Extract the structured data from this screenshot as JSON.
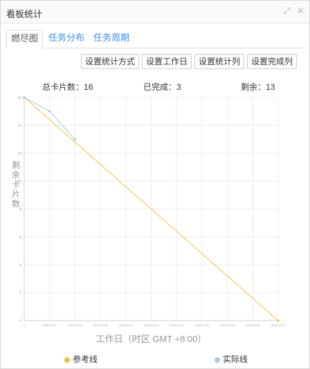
{
  "window": {
    "title": "看板统计"
  },
  "icons": {
    "expand": "expand-icon",
    "close": "close-icon"
  },
  "tabs": [
    {
      "label": "燃尽图",
      "active": true
    },
    {
      "label": "任务分布",
      "active": false
    },
    {
      "label": "任务周期",
      "active": false
    }
  ],
  "toolbar": {
    "buttons": [
      "设置统计方式",
      "设置工作日",
      "设置统计列",
      "设置完成列"
    ]
  },
  "stats": {
    "total_label": "总卡片数：",
    "total_value": "16",
    "done_label": "已完成：",
    "done_value": "3",
    "remaining_label": "剩余：",
    "remaining_value": "13"
  },
  "colors": {
    "reference": "#f0c040",
    "actual": "#a9c8e8",
    "grid": "#ececec",
    "link": "#3a8ee6"
  },
  "chart_data": {
    "type": "line",
    "title": "",
    "xlabel": "工作日（时区 GMT +8:00）",
    "ylabel": "剩余卡片数",
    "ylim": [
      0,
      16
    ],
    "y_ticks": [
      "0",
      "2",
      "4",
      "6",
      "8",
      "10",
      "12",
      "14",
      "16"
    ],
    "x_ticks": [
      "0",
      "2019-11-14",
      "2019-11-15",
      "2019-11-18",
      "2019-11-19",
      "2019-11-20",
      "2019-11-21",
      "2019-11-22",
      "2019-11-25",
      "2019-11-26",
      "2019-11-27"
    ],
    "series": [
      {
        "name": "参考线",
        "x": [
          0,
          10
        ],
        "values": [
          16,
          0
        ]
      },
      {
        "name": "实际线",
        "x": [
          0,
          1,
          2
        ],
        "values": [
          16,
          15,
          13
        ]
      }
    ],
    "grid": true,
    "legend": "bottom"
  }
}
